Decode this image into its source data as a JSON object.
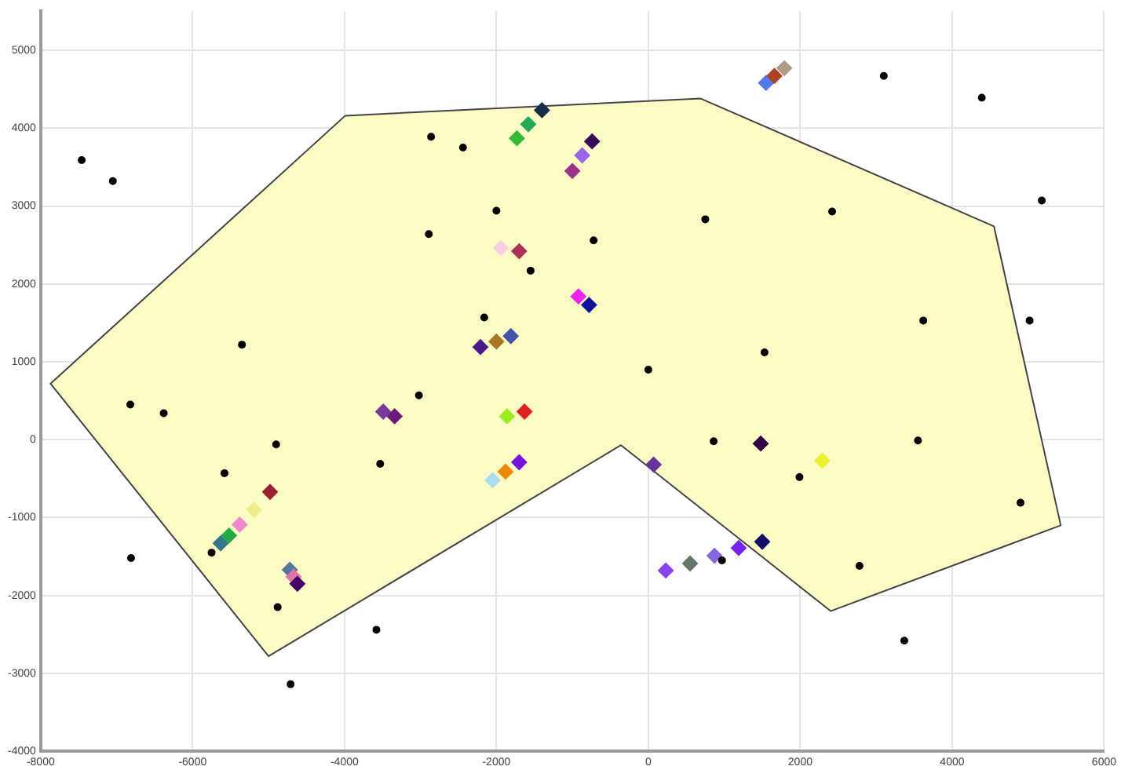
{
  "chart_data": {
    "type": "scatter",
    "xlim": [
      -8000,
      6000
    ],
    "xticks": [
      -8000,
      -6000,
      -4000,
      -2000,
      0,
      2000,
      4000,
      6000
    ],
    "ylim": [
      -4000,
      5500
    ],
    "yticks": [
      -4000,
      -3000,
      -2000,
      -1000,
      0,
      1000,
      2000,
      3000,
      4000,
      5000
    ],
    "grid": true,
    "legend": false,
    "series": [
      {
        "type": "area",
        "color": "#fcfbc6",
        "marker": "none",
        "x": [
          -7870,
          -3990,
          690,
          4550,
          5430,
          2400,
          -360,
          -5000,
          -7870
        ],
        "values": [
          720,
          4160,
          4380,
          2740,
          -1100,
          -2200,
          -70,
          -2780,
          720
        ]
      },
      {
        "color": "#000000",
        "marker": "circle",
        "x": [
          -7460,
          -7050,
          -2860,
          -2440,
          -2000,
          -2890,
          -1550,
          -2160,
          -5350,
          3100,
          4390,
          5180,
          750,
          2420,
          -720,
          3620,
          5020,
          1530,
          0,
          -6820,
          -6380,
          -3020,
          -4900,
          -5580,
          -3530,
          -5750,
          -6810,
          -4880,
          -3580,
          -4710,
          860,
          3550,
          1990,
          4900,
          970,
          2780,
          3370
        ],
        "values": [
          3590,
          3320,
          3890,
          3750,
          2940,
          2640,
          2170,
          1570,
          1220,
          4670,
          4390,
          3070,
          2830,
          2930,
          2560,
          1530,
          1530,
          1120,
          900,
          450,
          340,
          570,
          -60,
          -430,
          -310,
          -1450,
          -1520,
          -2150,
          -2440,
          -3140,
          -20,
          -10,
          -480,
          -810,
          -1550,
          -1620,
          -2580
        ]
      },
      {
        "marker": "diamond",
        "x": [
          -1400,
          -1580,
          -1730,
          -1940,
          -1700,
          -2210,
          -2000,
          -1810,
          1550,
          1660,
          1790,
          -740,
          -870,
          -1000,
          -920,
          -780,
          -3490,
          -3340,
          -1860,
          -1630,
          -2050,
          -1880,
          -1700,
          -4980,
          -5190,
          -5380,
          -5520,
          -5630,
          -4720,
          -4670,
          -4620,
          1480,
          70,
          2290,
          1500,
          1190,
          870,
          550,
          230
        ],
        "values": [
          4230,
          4050,
          3870,
          2460,
          2420,
          1190,
          1260,
          1330,
          4580,
          4670,
          4770,
          3830,
          3650,
          3450,
          1840,
          1730,
          360,
          300,
          300,
          360,
          -520,
          -410,
          -290,
          -670,
          -900,
          -1090,
          -1230,
          -1330,
          -1670,
          -1760,
          -1850,
          -50,
          -320,
          -270,
          -1310,
          -1390,
          -1490,
          -1590,
          -1680
        ],
        "colors": [
          "#1a2a4a",
          "#22aa55",
          "#33bb33",
          "#f8d0e0",
          "#aa3355",
          "#4a1a8a",
          "#aa7722",
          "#4455aa",
          "#5577ee",
          "#aa4422",
          "#b09a88",
          "#3a0a5a",
          "#9966ee",
          "#993388",
          "#ee22ee",
          "#111199",
          "#7a3a9a",
          "#6a1a7a",
          "#99ee22",
          "#dd2222",
          "#aaddee",
          "#ee8800",
          "#7711dd",
          "#992233",
          "#eeee88",
          "#ee88cc",
          "#22aa44",
          "#337788",
          "#557799",
          "#dd77aa",
          "#440066",
          "#330044",
          "#663399",
          "#eeee33",
          "#111166",
          "#7722ee",
          "#8866dd",
          "#667766",
          "#8844ee"
        ]
      }
    ]
  }
}
